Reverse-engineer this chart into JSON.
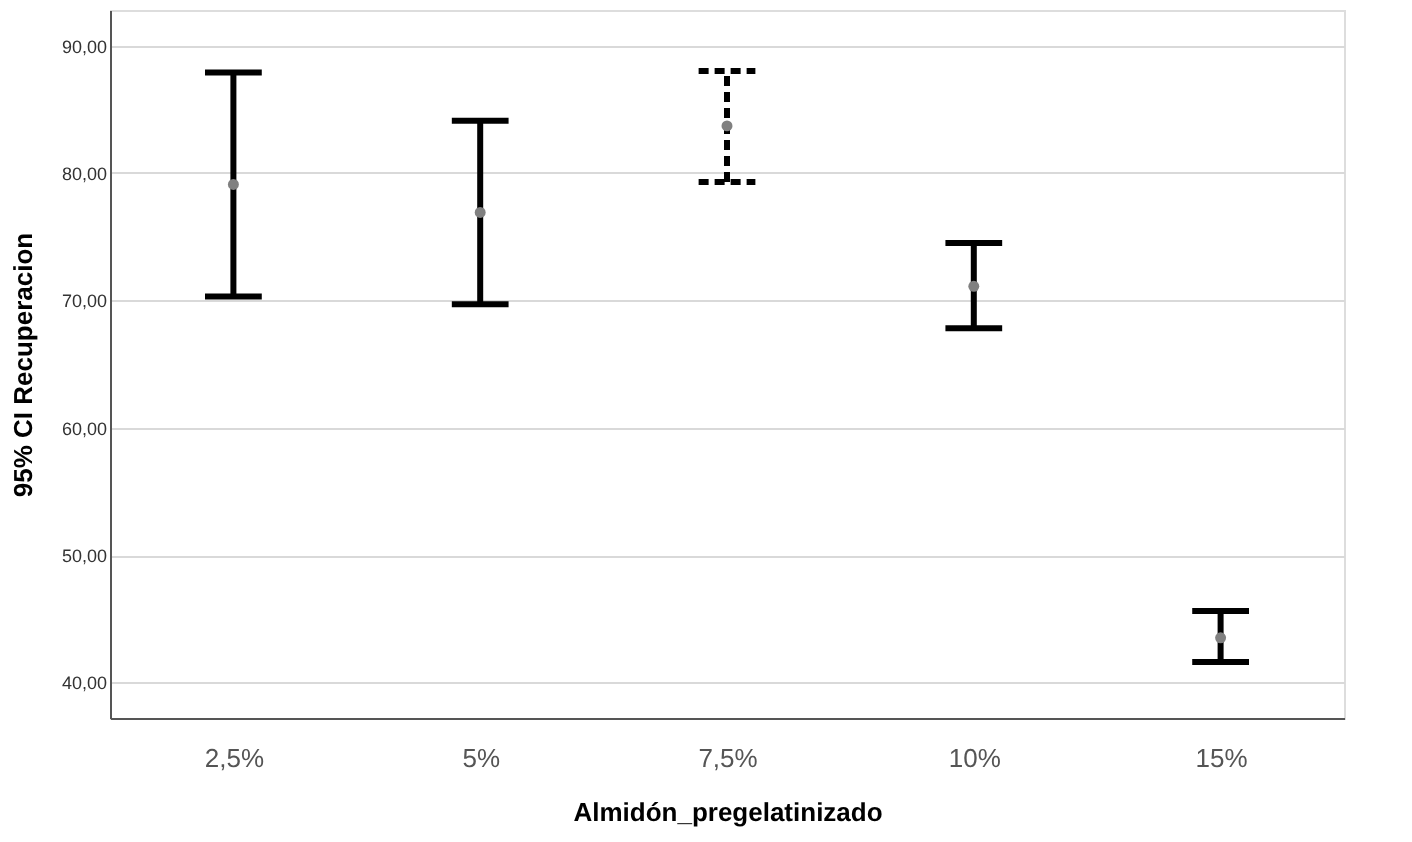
{
  "chart_data": {
    "type": "scatter",
    "xlabel": "Almidón_pregelatinizado",
    "ylabel": "95% CI Recuperacion",
    "categories": [
      "2,5%",
      "5%",
      "7,5%",
      "10%",
      "15%"
    ],
    "series": [
      {
        "color": "#808080",
        "line_style": "solid",
        "values": [
          79.1,
          76.9,
          null,
          71.1,
          43.5
        ],
        "errors": [
          [
            70.3,
            87.9
          ],
          [
            69.7,
            84.1
          ],
          null,
          [
            67.8,
            74.5
          ],
          [
            41.6,
            45.6
          ]
        ]
      },
      {
        "color": "#808080",
        "line_style": "dashed",
        "values": [
          null,
          null,
          83.7,
          null,
          null
        ],
        "errors": [
          null,
          null,
          [
            79.3,
            88.0
          ],
          null,
          null
        ]
      }
    ],
    "ylim": [
      37.2,
      92.8
    ],
    "yticks": [
      {
        "value": 40,
        "label": "40,00"
      },
      {
        "value": 50,
        "label": "50,00"
      },
      {
        "value": 60,
        "label": "60,00"
      },
      {
        "value": 70,
        "label": "70,00"
      },
      {
        "value": 80,
        "label": "80,00"
      },
      {
        "value": 90,
        "label": "90,00"
      }
    ],
    "grid": "y",
    "marker": "circle"
  }
}
